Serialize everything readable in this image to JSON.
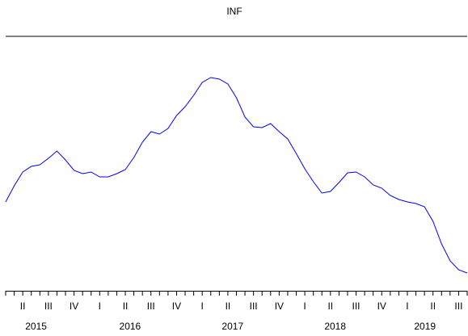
{
  "chart_data": {
    "type": "line",
    "title": "INF",
    "categories": [
      null,
      null,
      "II",
      null,
      null,
      "III",
      null,
      null,
      "IV",
      null,
      null,
      "I",
      null,
      null,
      "II",
      null,
      null,
      "III",
      null,
      null,
      "IV",
      null,
      null,
      "I",
      null,
      null,
      "II",
      null,
      null,
      "III",
      null,
      null,
      "IV",
      null,
      null,
      "I",
      null,
      null,
      "II",
      null,
      null,
      "III",
      null,
      null,
      "IV",
      null,
      null,
      "I",
      null,
      null,
      "II",
      null,
      null,
      "III",
      null
    ],
    "x_groups": [
      {
        "label": "2015",
        "count": 10
      },
      {
        "label": "2016",
        "count": 12
      },
      {
        "label": "2017",
        "count": 12
      },
      {
        "label": "2018",
        "count": 12
      },
      {
        "label": "2019",
        "count": 9
      }
    ],
    "series": [
      {
        "name": "INF",
        "color": "#0000ff",
        "values": [
          110,
          130,
          147,
          154,
          156,
          164,
          173,
          162,
          149,
          145,
          147,
          141,
          141,
          145,
          150,
          165,
          184,
          197,
          194,
          201,
          217,
          228,
          242,
          258,
          264,
          262,
          256,
          239,
          215,
          203,
          202,
          207,
          197,
          188,
          170,
          151,
          135,
          121,
          123,
          134,
          146,
          147,
          141,
          131,
          127,
          118,
          113,
          110,
          108,
          104,
          86,
          58,
          37,
          26,
          22
        ]
      }
    ],
    "ylim": [
      0,
      300
    ]
  }
}
